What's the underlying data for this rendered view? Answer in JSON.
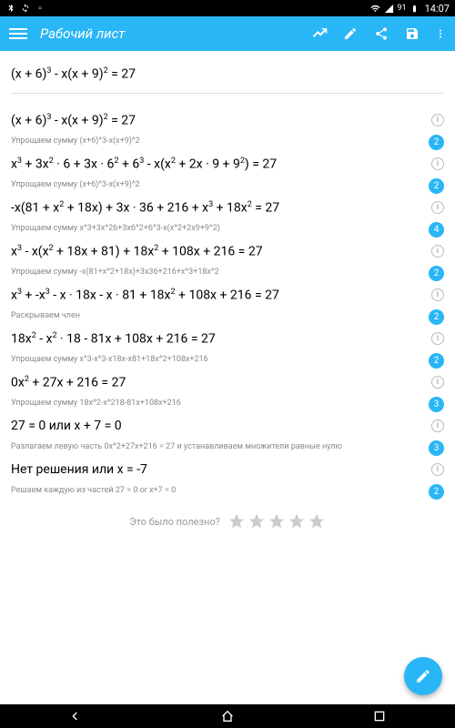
{
  "status": {
    "time": "14:07",
    "battery": "91"
  },
  "appBar": {
    "title": "Рабочий лист"
  },
  "problem": "(x + 6)<sup>3</sup> - x(x + 9)<sup>2</sup> = 27",
  "steps": [
    {
      "math": "(x + 6)<sup>3</sup> - x(x + 9)<sup>2</sup> = 27",
      "info": true
    },
    {
      "hint": "Упрощаем сумму (x+6)^3-x(x+9)^2",
      "badge": "2"
    },
    {
      "math": "x<sup>3</sup> + 3x<sup>2</sup> · 6 + 3x · 6<sup>2</sup> + 6<sup>3</sup> - x(x<sup>2</sup> + 2x · 9 + 9<sup>2</sup>) = 27",
      "info": true
    },
    {
      "hint": "Упрощаем сумму (x+6)^3-x(x+9)^2",
      "badge": "2"
    },
    {
      "math": "-x(81 + x<sup>2</sup> + 18x) + 3x · 36 + 216 + x<sup>3</sup> + 18x<sup>2</sup> = 27",
      "info": true
    },
    {
      "hint": "Упрощаем сумму x^3+3x^26+3x6^2+6^3-x(x^2+2x9+9^2)",
      "badge": "4"
    },
    {
      "math": "x<sup>3</sup> - x(x<sup>2</sup> + 18x + 81) + 18x<sup>2</sup> + 108x + 216 = 27",
      "info": true
    },
    {
      "hint": "Упрощаем сумму -x(81+x^2+18x)+3x36+216+x^3+18x^2",
      "badge": "2"
    },
    {
      "math": "x<sup>3</sup> + -x<sup>3</sup> - x · 18x - x · 81 + 18x<sup>2</sup> + 108x + 216 = 27",
      "info": true
    },
    {
      "hint": "Раскрываем член",
      "badge": "2"
    },
    {
      "math": "18x<sup>2</sup> - x<sup>2</sup> · 18 - 81x + 108x + 216 = 27",
      "info": true
    },
    {
      "hint": "Упрощаем сумму x^3-x^3-x18x-x81+18x^2+108x+216",
      "badge": "2"
    },
    {
      "math": "0x<sup>2</sup> + 27x + 216 = 27",
      "info": true
    },
    {
      "hint": "Упрощаем сумму 18x^2-x^218-81x+108x+216",
      "badge": "3"
    },
    {
      "math": "27 = 0 или x + 7 = 0",
      "info": true
    },
    {
      "hint": "Разлагаем левую часть 0x^2+27x+216 = 27 и устанавливаем множители равные нулю",
      "badge": "3"
    },
    {
      "math": "Нет решения  или x = -7",
      "info": true
    },
    {
      "hint": "Решаем каждую из частей 27 = 0 or x+7 = 0",
      "badge": "2"
    }
  ],
  "rating": {
    "text": "Это было полезно?"
  }
}
